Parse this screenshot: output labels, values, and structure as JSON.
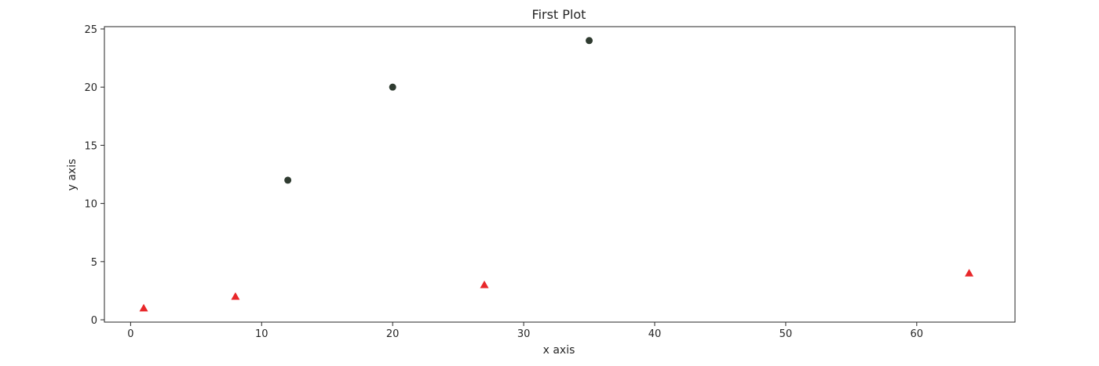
{
  "chart_data": {
    "type": "scatter",
    "title": "First Plot",
    "xlabel": "x axis",
    "ylabel": "y axis",
    "xlim": [
      -2,
      67.5
    ],
    "ylim": [
      -0.2,
      25.2
    ],
    "x_ticks": [
      0,
      10,
      20,
      30,
      40,
      50,
      60
    ],
    "y_ticks": [
      0,
      5,
      10,
      15,
      20,
      25
    ],
    "grid": false,
    "series": [
      {
        "marker": "circle",
        "color": "#2f3b30",
        "points": [
          {
            "x": 12,
            "y": 12
          },
          {
            "x": 20,
            "y": 20
          },
          {
            "x": 35,
            "y": 24
          }
        ]
      },
      {
        "marker": "triangle",
        "color": "#e8272a",
        "points": [
          {
            "x": 1,
            "y": 1
          },
          {
            "x": 8,
            "y": 2
          },
          {
            "x": 27,
            "y": 3
          },
          {
            "x": 64,
            "y": 4
          }
        ]
      }
    ]
  }
}
